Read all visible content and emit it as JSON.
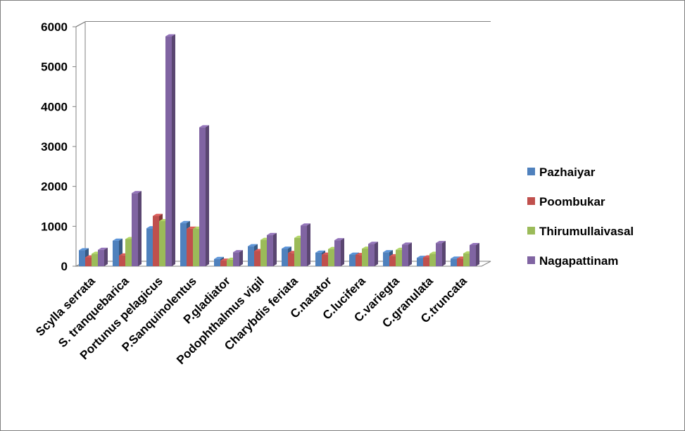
{
  "chart_data": {
    "type": "bar",
    "title": "",
    "xlabel": "",
    "ylabel": "",
    "ylim": [
      0,
      6000
    ],
    "yticks": [
      0,
      1000,
      2000,
      3000,
      4000,
      5000,
      6000
    ],
    "grid": true,
    "legend_position": "right",
    "categories": [
      "Scylla serrata",
      "S. tranquebarica",
      "Portunus pelagicus",
      "P.Sanquinolentus",
      "P.gladiator",
      "Podophthalmus vigil",
      "Charybdis feriata",
      "C.natator",
      "C.lucifera",
      "C.variegta",
      "C.granulata",
      "C.truncata"
    ],
    "series": [
      {
        "name": "Pazhaiyar",
        "color": "#4f81bd",
        "values": [
          400,
          640,
          950,
          1080,
          180,
          500,
          440,
          340,
          290,
          350,
          210,
          190
        ]
      },
      {
        "name": "Poombukar",
        "color": "#c0504d",
        "values": [
          220,
          270,
          1260,
          940,
          140,
          380,
          330,
          290,
          280,
          250,
          220,
          190
        ]
      },
      {
        "name": "Thirumullaivasal",
        "color": "#9bbb59",
        "values": [
          310,
          680,
          1130,
          940,
          160,
          660,
          710,
          430,
          440,
          410,
          310,
          320
        ]
      },
      {
        "name": "Nagapattinam",
        "color": "#8064a2",
        "values": [
          410,
          1830,
          5760,
          3480,
          350,
          780,
          1020,
          650,
          560,
          540,
          580,
          530
        ]
      }
    ]
  }
}
